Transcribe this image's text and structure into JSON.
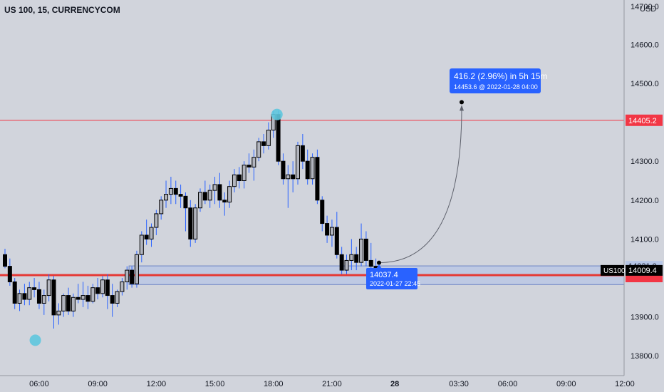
{
  "title": "US 100, 15, CURRENCYCOM",
  "chart_data": {
    "type": "candlestick",
    "title": "US 100, 15, CURRENCYCOM",
    "currency": "USD",
    "ylim": [
      13750,
      14730
    ],
    "y_ticks": [
      "13800.0",
      "13900.0",
      "14000.0",
      "14100.0",
      "14200.0",
      "14300.0",
      "14400.0",
      "14500.0",
      "14600.0",
      "14700.0"
    ],
    "y_tick_values": [
      13800,
      13900,
      14000,
      14100,
      14200,
      14300,
      14400,
      14500,
      14600,
      14700
    ],
    "x_ticks": [
      {
        "label": "03:30",
        "idx": -3
      },
      {
        "label": "06:00",
        "idx": 7
      },
      {
        "label": "09:00",
        "idx": 19
      },
      {
        "label": "12:00",
        "idx": 31
      },
      {
        "label": "15:00",
        "idx": 43
      },
      {
        "label": "18:00",
        "idx": 55
      },
      {
        "label": "21:00",
        "idx": 67
      },
      {
        "label": "28",
        "idx": 79
      },
      {
        "label": "03:30",
        "idx": 93
      },
      {
        "label": "06:00",
        "idx": 103
      },
      {
        "label": "09:00",
        "idx": 115
      },
      {
        "label": "12:00",
        "idx": 127
      }
    ],
    "candles": [
      [
        14060,
        14075,
        14025,
        14030
      ],
      [
        14030,
        14050,
        13980,
        13990
      ],
      [
        13990,
        14000,
        13920,
        13935
      ],
      [
        13935,
        13970,
        13915,
        13960
      ],
      [
        13960,
        13985,
        13930,
        13945
      ],
      [
        13945,
        13990,
        13930,
        13975
      ],
      [
        13975,
        14000,
        13950,
        13970
      ],
      [
        13970,
        13990,
        13920,
        13935
      ],
      [
        13935,
        13970,
        13905,
        13955
      ],
      [
        13955,
        14010,
        13940,
        13995
      ],
      [
        13995,
        14005,
        13870,
        13905
      ],
      [
        13905,
        13935,
        13880,
        13915
      ],
      [
        13915,
        13960,
        13900,
        13955
      ],
      [
        13955,
        13975,
        13905,
        13915
      ],
      [
        13915,
        13960,
        13900,
        13950
      ],
      [
        13950,
        13985,
        13935,
        13945
      ],
      [
        13945,
        13990,
        13925,
        13955
      ],
      [
        13955,
        13980,
        13920,
        13940
      ],
      [
        13940,
        13985,
        13935,
        13975
      ],
      [
        13975,
        14000,
        13945,
        13960
      ],
      [
        13960,
        14005,
        13950,
        13995
      ],
      [
        13995,
        14010,
        13920,
        13955
      ],
      [
        13955,
        13985,
        13900,
        13935
      ],
      [
        13935,
        13970,
        13925,
        13965
      ],
      [
        13965,
        14000,
        13955,
        13990
      ],
      [
        13990,
        14030,
        13970,
        14020
      ],
      [
        14020,
        14030,
        13975,
        13985
      ],
      [
        13985,
        14070,
        13975,
        14060
      ],
      [
        14060,
        14120,
        14040,
        14110
      ],
      [
        14110,
        14150,
        14085,
        14100
      ],
      [
        14100,
        14140,
        14080,
        14130
      ],
      [
        14130,
        14175,
        14110,
        14165
      ],
      [
        14165,
        14210,
        14150,
        14200
      ],
      [
        14200,
        14250,
        14180,
        14215
      ],
      [
        14215,
        14260,
        14190,
        14230
      ],
      [
        14230,
        14250,
        14190,
        14215
      ],
      [
        14215,
        14240,
        14180,
        14210
      ],
      [
        14210,
        14220,
        14120,
        14180
      ],
      [
        14180,
        14200,
        14080,
        14100
      ],
      [
        14100,
        14190,
        14090,
        14180
      ],
      [
        14180,
        14230,
        14170,
        14220
      ],
      [
        14220,
        14250,
        14190,
        14200
      ],
      [
        14200,
        14240,
        14180,
        14225
      ],
      [
        14225,
        14260,
        14190,
        14240
      ],
      [
        14240,
        14270,
        14180,
        14200
      ],
      [
        14200,
        14220,
        14160,
        14195
      ],
      [
        14195,
        14250,
        14180,
        14235
      ],
      [
        14235,
        14280,
        14220,
        14265
      ],
      [
        14265,
        14285,
        14230,
        14250
      ],
      [
        14250,
        14300,
        14230,
        14290
      ],
      [
        14290,
        14320,
        14270,
        14285
      ],
      [
        14285,
        14330,
        14250,
        14310
      ],
      [
        14310,
        14360,
        14300,
        14350
      ],
      [
        14350,
        14370,
        14320,
        14340
      ],
      [
        14340,
        14400,
        14330,
        14380
      ],
      [
        14380,
        14430,
        14360,
        14420
      ],
      [
        14420,
        14430,
        14290,
        14300
      ],
      [
        14300,
        14320,
        14240,
        14255
      ],
      [
        14255,
        14290,
        14180,
        14265
      ],
      [
        14265,
        14300,
        14220,
        14255
      ],
      [
        14255,
        14350,
        14240,
        14340
      ],
      [
        14340,
        14370,
        14280,
        14300
      ],
      [
        14300,
        14330,
        14240,
        14255
      ],
      [
        14255,
        14320,
        14240,
        14310
      ],
      [
        14310,
        14330,
        14190,
        14200
      ],
      [
        14200,
        14210,
        14120,
        14140
      ],
      [
        14140,
        14160,
        14090,
        14110
      ],
      [
        14110,
        14150,
        14080,
        14130
      ],
      [
        14130,
        14170,
        14050,
        14060
      ],
      [
        14060,
        14080,
        14010,
        14020
      ],
      [
        14020,
        14060,
        14010,
        14045
      ],
      [
        14045,
        14100,
        14020,
        14060
      ],
      [
        14060,
        14080,
        14020,
        14040
      ],
      [
        14040,
        14140,
        14030,
        14100
      ],
      [
        14100,
        14120,
        14030,
        14045
      ],
      [
        14045,
        14090,
        14020,
        14030
      ],
      [
        14030,
        14050,
        14010,
        14015
      ]
    ],
    "support_zone": [
      13983,
      14031
    ],
    "support_line": 14000,
    "resistance_line": 14405.2,
    "resistance_label": "14405.2",
    "price_labels": [
      {
        "text": "14031.0",
        "value": 14031,
        "style": "plain"
      },
      {
        "text": "14009.4",
        "value": 14009.4,
        "style": "dark"
      }
    ],
    "symbol_label": "US100",
    "markers": [
      {
        "name": "cyan-circle-high",
        "idx": 55,
        "price": 14420
      },
      {
        "name": "cyan-circle-low",
        "idx": 3,
        "price": 13840
      }
    ],
    "projection": {
      "start_idx": 78.5,
      "start_price": 14037.4,
      "end_idx": 96,
      "end_price": 14453.6,
      "start_label_value": "14037.4",
      "start_label_date": "2022-01-27  22:45",
      "end_label_main": "416.2 (2.96%) in 5h 15m",
      "end_label_sub": "14453.6 @ 2022-01-28  04:00"
    },
    "colors": {
      "background": "#d1d4dc",
      "bull_fill": "#b2b5be",
      "bear_fill": "#000000",
      "candle_outline": "#000000",
      "resistance": "#f23645",
      "support": "#e53935",
      "zone_fill": "#b7c6e6",
      "zone_stroke": "#6c84c4",
      "label_blue": "#2962ff",
      "marker": "#5ec7de"
    }
  }
}
